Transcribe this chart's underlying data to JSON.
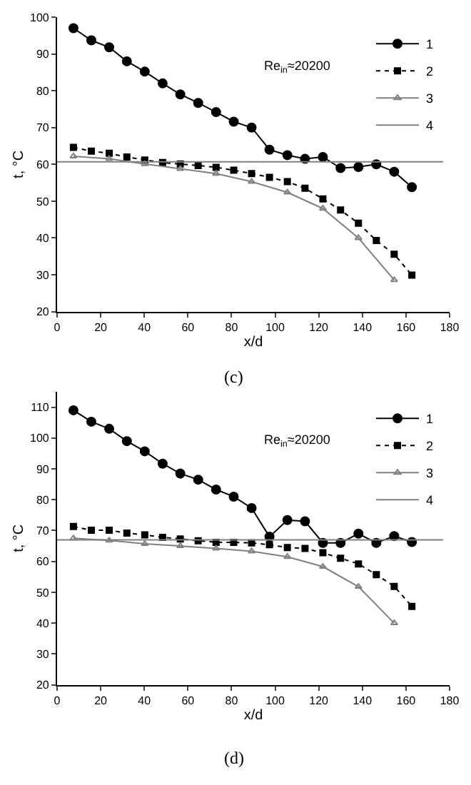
{
  "chart_data": [
    {
      "type": "line",
      "xlabel": "x/d",
      "ylabel": "t, °C",
      "xlim": [
        0,
        180
      ],
      "xticks": [
        0,
        20,
        40,
        60,
        80,
        100,
        120,
        140,
        160,
        180
      ],
      "ylim": [
        20,
        100
      ],
      "yticks": [
        20,
        30,
        40,
        50,
        60,
        70,
        80,
        90,
        100
      ],
      "legend": "top right",
      "annotations": [
        "Re$_{in}$≈20200",
        "(c)"
      ],
      "x": [
        7.5,
        15.7,
        23.9,
        32,
        40.2,
        48.4,
        56.5,
        64.7,
        72.9,
        81,
        89.2,
        97.4,
        105.6,
        113.7,
        121.9,
        130,
        138.2,
        146.4,
        154.6,
        162.7
      ],
      "series": [
        {
          "name": "1",
          "color": "#000000",
          "marker": "circle",
          "line_style": "solid",
          "values": [
            97,
            93.7,
            91.8,
            88,
            85.2,
            82,
            79,
            76.7,
            74.2,
            71.6,
            70,
            64,
            62.5,
            61.5,
            62,
            59,
            59.3,
            60,
            58,
            53.8
          ]
        },
        {
          "name": "2",
          "color": "#000000",
          "marker": "square",
          "line_style": "dotted",
          "values": [
            64.6,
            63.6,
            63,
            62,
            61.2,
            60.5,
            60.1,
            59.7,
            59.2,
            58.4,
            57.5,
            56.5,
            55.3,
            53.5,
            50.6,
            47.6,
            44,
            39.3,
            35.6,
            29.9
          ]
        },
        {
          "name": "3",
          "color": "#808080",
          "marker": "triangle",
          "line_style": "solid",
          "x": [
            7.5,
            23.9,
            40.2,
            56.5,
            72.9,
            89.2,
            105.6,
            121.9,
            138.2,
            154.6
          ],
          "values": [
            62.2,
            61.5,
            60.1,
            58.8,
            57.5,
            55.3,
            52.4,
            48,
            40,
            28.6
          ]
        },
        {
          "name": "4",
          "color": "#808080",
          "marker": "none",
          "line_style": "solid",
          "x": [
            0,
            177
          ],
          "values": [
            60.7,
            60.7
          ]
        }
      ]
    },
    {
      "type": "line",
      "xlabel": "x/d",
      "ylabel": "t, °C",
      "xlim": [
        0,
        180
      ],
      "xticks": [
        0,
        20,
        40,
        60,
        80,
        100,
        120,
        140,
        160,
        180
      ],
      "ylim": [
        20,
        115
      ],
      "yticks": [
        20,
        30,
        40,
        50,
        60,
        70,
        80,
        90,
        100,
        110
      ],
      "legend": "top right",
      "annotations": [
        "Re$_{in}$≈20200",
        "(d)"
      ],
      "x": [
        7.5,
        15.7,
        23.9,
        32,
        40.2,
        48.4,
        56.5,
        64.7,
        72.9,
        81,
        89.2,
        97.4,
        105.6,
        113.7,
        121.9,
        130,
        138.2,
        146.4,
        154.6,
        162.7
      ],
      "series": [
        {
          "name": "1",
          "color": "#000000",
          "marker": "circle",
          "line_style": "solid",
          "values": [
            109,
            105.3,
            103,
            99,
            95.7,
            91.7,
            88.5,
            86.5,
            83.3,
            81,
            77.3,
            68,
            73.4,
            73,
            66,
            66,
            69,
            66,
            68.2,
            66.3
          ]
        },
        {
          "name": "2",
          "color": "#000000",
          "marker": "square",
          "line_style": "dotted",
          "values": [
            71.3,
            70.1,
            70.1,
            69.2,
            68.6,
            67.8,
            67.3,
            66.7,
            66.2,
            66.2,
            66,
            65.4,
            64.5,
            64.2,
            62.8,
            61,
            59.2,
            55.7,
            51.9,
            45.4
          ]
        },
        {
          "name": "3",
          "color": "#808080",
          "marker": "triangle",
          "line_style": "solid",
          "x": [
            7.5,
            23.9,
            40.2,
            56.5,
            72.9,
            89.2,
            105.6,
            121.9,
            138.2,
            154.6
          ],
          "values": [
            67.5,
            66.8,
            65.7,
            65,
            64.2,
            63.3,
            61.5,
            58.3,
            51.8,
            40
          ]
        },
        {
          "name": "4",
          "color": "#808080",
          "marker": "none",
          "line_style": "solid",
          "x": [
            0,
            177
          ],
          "values": [
            67,
            67
          ]
        }
      ]
    }
  ]
}
